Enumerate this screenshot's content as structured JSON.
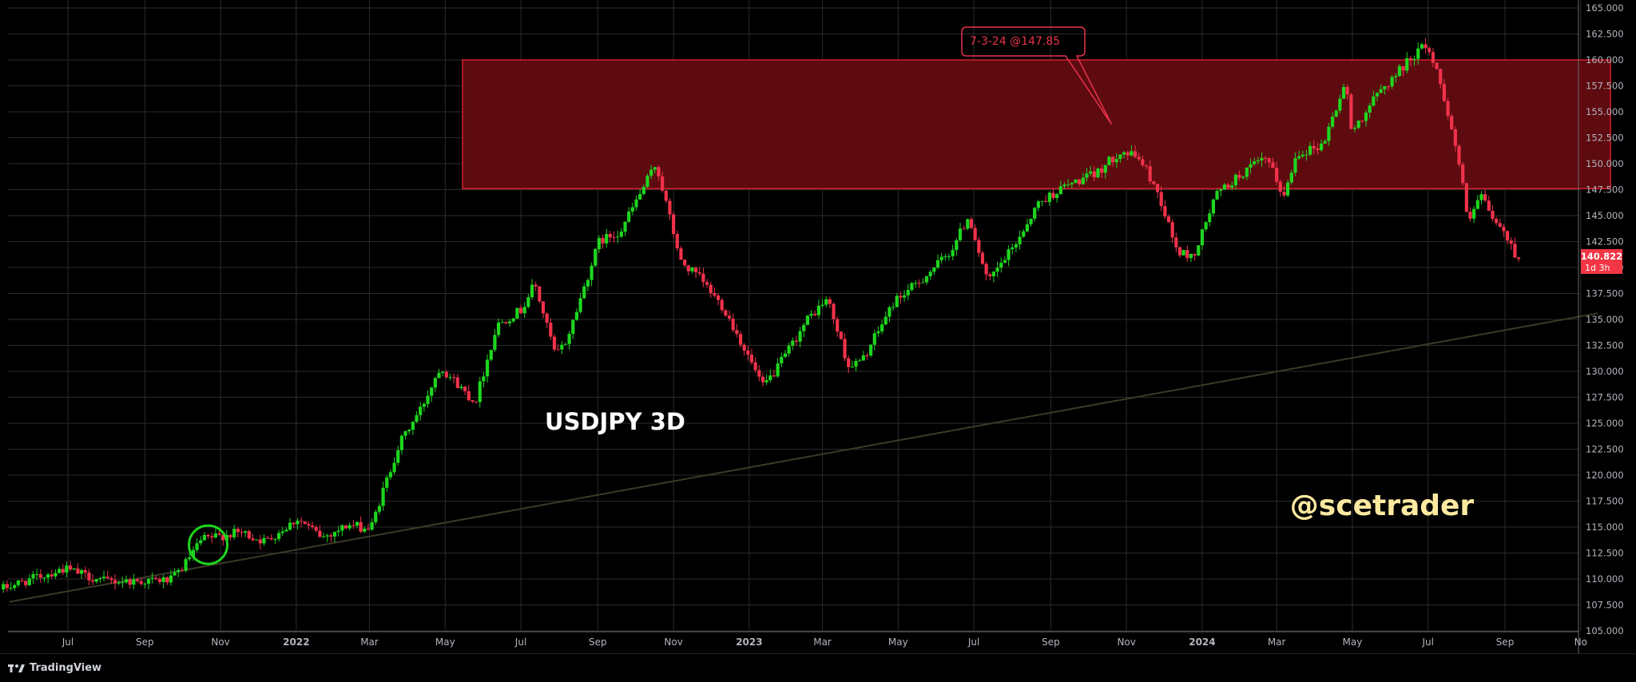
{
  "chart_data": {
    "type": "candlestick",
    "symbol_label": "USDJPY 3D",
    "watermark": "@scetrader",
    "y_ticks": [
      "165.000",
      "162.500",
      "160.000",
      "157.500",
      "155.000",
      "152.500",
      "150.000",
      "147.500",
      "145.000",
      "142.500",
      "140.000",
      "137.500",
      "135.000",
      "132.500",
      "130.000",
      "127.500",
      "125.000",
      "122.500",
      "120.000",
      "117.500",
      "115.000",
      "112.500",
      "110.000",
      "107.500",
      "105.000"
    ],
    "x_ticks": [
      {
        "label": "Jul",
        "date": "2021-07-01",
        "bold": false
      },
      {
        "label": "Sep",
        "date": "2021-09-01",
        "bold": false
      },
      {
        "label": "Nov",
        "date": "2021-11-01",
        "bold": false
      },
      {
        "label": "2022",
        "date": "2022-01-01",
        "bold": true
      },
      {
        "label": "Mar",
        "date": "2022-03-01",
        "bold": false
      },
      {
        "label": "May",
        "date": "2022-05-01",
        "bold": false
      },
      {
        "label": "Jul",
        "date": "2022-07-01",
        "bold": false
      },
      {
        "label": "Sep",
        "date": "2022-09-01",
        "bold": false
      },
      {
        "label": "Nov",
        "date": "2022-11-01",
        "bold": false
      },
      {
        "label": "2023",
        "date": "2023-01-01",
        "bold": true
      },
      {
        "label": "Mar",
        "date": "2023-03-01",
        "bold": false
      },
      {
        "label": "May",
        "date": "2023-05-01",
        "bold": false
      },
      {
        "label": "Jul",
        "date": "2023-07-01",
        "bold": false
      },
      {
        "label": "Sep",
        "date": "2023-09-01",
        "bold": false
      },
      {
        "label": "Nov",
        "date": "2023-11-01",
        "bold": false
      },
      {
        "label": "2024",
        "date": "2024-01-01",
        "bold": true
      },
      {
        "label": "Mar",
        "date": "2024-03-01",
        "bold": false
      },
      {
        "label": "May",
        "date": "2024-05-01",
        "bold": false
      },
      {
        "label": "Jul",
        "date": "2024-07-01",
        "bold": false
      },
      {
        "label": "Sep",
        "date": "2024-09-01",
        "bold": false
      },
      {
        "label": "No",
        "date": "2024-11-01",
        "bold": false
      }
    ],
    "price_path": [
      [
        "2021-05-10",
        109.0
      ],
      [
        "2021-06-10",
        110.2
      ],
      [
        "2021-07-01",
        111.0
      ],
      [
        "2021-08-01",
        109.8
      ],
      [
        "2021-09-01",
        109.8
      ],
      [
        "2021-09-25",
        109.9
      ],
      [
        "2021-10-05",
        111.2
      ],
      [
        "2021-10-20",
        113.8
      ],
      [
        "2021-11-20",
        114.5
      ],
      [
        "2021-12-10",
        113.6
      ],
      [
        "2022-01-05",
        115.8
      ],
      [
        "2022-01-25",
        114.0
      ],
      [
        "2022-02-15",
        115.2
      ],
      [
        "2022-03-05",
        114.8
      ],
      [
        "2022-03-15",
        118.5
      ],
      [
        "2022-03-28",
        123.0
      ],
      [
        "2022-04-15",
        126.5
      ],
      [
        "2022-04-30",
        130.5
      ],
      [
        "2022-05-20",
        128.0
      ],
      [
        "2022-05-28",
        127.0
      ],
      [
        "2022-06-15",
        134.5
      ],
      [
        "2022-07-05",
        136.0
      ],
      [
        "2022-07-15",
        138.5
      ],
      [
        "2022-08-01",
        131.5
      ],
      [
        "2022-08-10",
        133.0
      ],
      [
        "2022-09-05",
        142.5
      ],
      [
        "2022-09-22",
        143.5
      ],
      [
        "2022-10-21",
        150.0
      ],
      [
        "2022-11-10",
        140.5
      ],
      [
        "2022-11-25",
        139.0
      ],
      [
        "2022-12-15",
        136.0
      ],
      [
        "2023-01-05",
        131.0
      ],
      [
        "2023-01-15",
        128.5
      ],
      [
        "2023-01-25",
        130.0
      ],
      [
        "2023-02-20",
        135.0
      ],
      [
        "2023-03-08",
        137.0
      ],
      [
        "2023-03-25",
        130.5
      ],
      [
        "2023-04-05",
        131.0
      ],
      [
        "2023-05-01",
        136.8
      ],
      [
        "2023-05-20",
        138.5
      ],
      [
        "2023-06-15",
        141.5
      ],
      [
        "2023-06-30",
        145.0
      ],
      [
        "2023-07-15",
        138.5
      ],
      [
        "2023-08-05",
        142.0
      ],
      [
        "2023-08-25",
        146.2
      ],
      [
        "2023-09-15",
        147.8
      ],
      [
        "2023-10-10",
        149.0
      ],
      [
        "2023-10-30",
        151.2
      ],
      [
        "2023-11-15",
        150.5
      ],
      [
        "2023-11-30",
        147.0
      ],
      [
        "2023-12-15",
        141.5
      ],
      [
        "2023-12-28",
        141.0
      ],
      [
        "2024-01-15",
        147.0
      ],
      [
        "2024-02-10",
        149.5
      ],
      [
        "2024-02-25",
        150.5
      ],
      [
        "2024-03-10",
        146.8
      ],
      [
        "2024-03-20",
        151.0
      ],
      [
        "2024-04-10",
        151.8
      ],
      [
        "2024-04-29",
        158.0
      ],
      [
        "2024-05-03",
        153.0
      ],
      [
        "2024-05-25",
        156.8
      ],
      [
        "2024-06-25",
        160.8
      ],
      [
        "2024-07-03",
        161.5
      ],
      [
        "2024-07-15",
        157.5
      ],
      [
        "2024-07-31",
        149.0
      ],
      [
        "2024-08-05",
        144.0
      ],
      [
        "2024-08-15",
        147.0
      ],
      [
        "2024-08-26",
        144.5
      ],
      [
        "2024-09-05",
        143.0
      ],
      [
        "2024-09-14",
        140.8
      ]
    ],
    "candle_start": "2021-05-10",
    "candle_end": "2024-09-14",
    "candle_interval_days": 3,
    "resistance_zone": {
      "from_date": "2022-05-15",
      "to_date": "2024-11-25",
      "low": 147.6,
      "high": 160.0
    },
    "trendline": {
      "start": [
        "2021-05-15",
        107.8
      ],
      "end": [
        "2024-11-15",
        135.6
      ]
    },
    "callout": {
      "text": "7-3-24 @147.85",
      "pointer_date": "2023-10-20",
      "pointer_price": 153.8
    },
    "highlight_circle": {
      "date": "2021-10-22",
      "price": 113.3
    },
    "last_price": {
      "value": "140.822",
      "countdown": "1d 3h"
    },
    "colors": {
      "up": "#1ed61e",
      "down": "#f0324a",
      "zone_fill": "#5e0b10",
      "zone_border": "#d41e2c",
      "grid": "#2b2b2b",
      "trendline": "#3b3a28",
      "circle": "#1ed61e",
      "watermark": "#fde9a0",
      "label": "#ffffff",
      "axis_text": "#b2b5be",
      "callout": "#e8334a",
      "price_tag": "#f23645"
    },
    "ylim": [
      104.0,
      166.0
    ]
  },
  "footer": {
    "brand": "TradingView"
  }
}
